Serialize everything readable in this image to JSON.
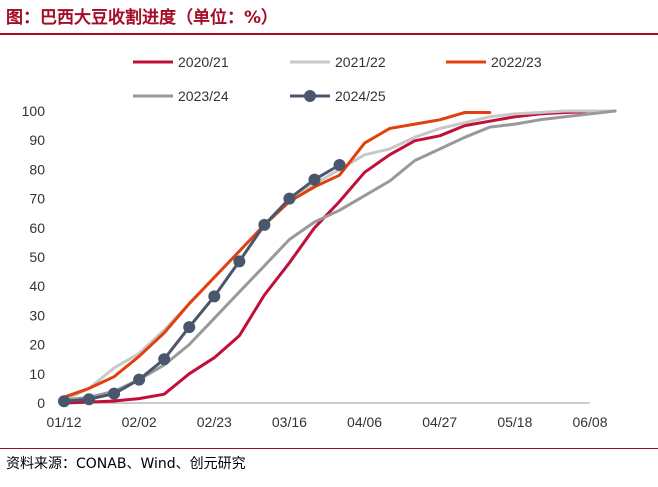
{
  "title": "图：巴西大豆收割进度（单位：%）",
  "source": "资料来源：CONAB、Wind、创元研究",
  "chart_data": {
    "type": "line",
    "title": "巴西大豆收割进度（单位：%）",
    "xlabel": "",
    "ylabel": "",
    "x_ticks": [
      "01/12",
      "02/02",
      "02/23",
      "03/16",
      "04/06",
      "04/27",
      "05/18",
      "06/08"
    ],
    "ylim": [
      0,
      100
    ],
    "y_ticks": [
      0,
      10,
      20,
      30,
      40,
      50,
      60,
      70,
      80,
      90,
      100
    ],
    "grid": false,
    "legend": "top",
    "series": [
      {
        "name": "2020/21",
        "color": "#c0103a",
        "x": [
          "01/12",
          "01/19",
          "01/26",
          "02/02",
          "02/09",
          "02/16",
          "02/23",
          "03/02",
          "03/09",
          "03/16",
          "03/23",
          "03/30",
          "04/06",
          "04/13",
          "04/20",
          "04/27",
          "05/04",
          "05/11",
          "05/18",
          "05/25",
          "06/01",
          "06/08",
          "06/15"
        ],
        "y": [
          0,
          0.3,
          0.7,
          1.5,
          3,
          10,
          15.5,
          23,
          37,
          48,
          60,
          69,
          79,
          85,
          89.8,
          91.5,
          95,
          96.5,
          98,
          99,
          99.5,
          99.8,
          100
        ]
      },
      {
        "name": "2021/22",
        "color": "#c8c8c8",
        "x": [
          "01/12",
          "01/19",
          "01/26",
          "02/02",
          "02/09",
          "02/16",
          "02/23",
          "03/02",
          "03/09",
          "03/16",
          "03/23",
          "03/30",
          "04/06",
          "04/13",
          "04/20",
          "04/27",
          "05/04",
          "05/11",
          "05/18",
          "05/25",
          "06/01",
          "06/08",
          "06/15"
        ],
        "y": [
          1,
          5,
          12,
          17,
          25,
          34,
          43,
          52,
          61,
          69,
          75,
          80,
          85,
          87,
          91,
          94,
          96,
          98,
          99,
          99.5,
          100,
          100,
          100
        ]
      },
      {
        "name": "2022/23",
        "color": "#e0410e",
        "x": [
          "01/12",
          "01/19",
          "01/26",
          "02/02",
          "02/09",
          "02/16",
          "02/23",
          "03/02",
          "03/09",
          "03/16",
          "03/23",
          "03/30",
          "04/06",
          "04/13",
          "04/20",
          "04/27",
          "05/04",
          "05/11"
        ],
        "y": [
          2,
          5,
          9,
          16,
          24,
          34,
          43,
          52,
          61,
          69,
          74,
          78,
          89,
          94,
          95.5,
          97,
          99.5,
          99.5
        ]
      },
      {
        "name": "2023/24",
        "color": "#999999",
        "x": [
          "01/12",
          "01/19",
          "01/26",
          "02/02",
          "02/09",
          "02/16",
          "02/23",
          "03/02",
          "03/09",
          "03/16",
          "03/23",
          "03/30",
          "04/06",
          "04/13",
          "04/20",
          "04/27",
          "05/04",
          "05/11",
          "05/18",
          "05/25",
          "06/01",
          "06/08",
          "06/15"
        ],
        "y": [
          1,
          2,
          4,
          8,
          13,
          20,
          29,
          38,
          47,
          56,
          62,
          66,
          71,
          76,
          83,
          87,
          91,
          94.5,
          95.5,
          97,
          98,
          99,
          100
        ]
      },
      {
        "name": "2024/25",
        "color": "#4a566b",
        "marker": "circle",
        "x": [
          "01/12",
          "01/19",
          "01/26",
          "02/02",
          "02/09",
          "02/16",
          "02/23",
          "03/02",
          "03/09",
          "03/16",
          "03/23",
          "03/30"
        ],
        "y": [
          0.6,
          1.3,
          3.2,
          8,
          15,
          26,
          36.5,
          48.5,
          61,
          70,
          76.5,
          81.5
        ]
      }
    ]
  }
}
